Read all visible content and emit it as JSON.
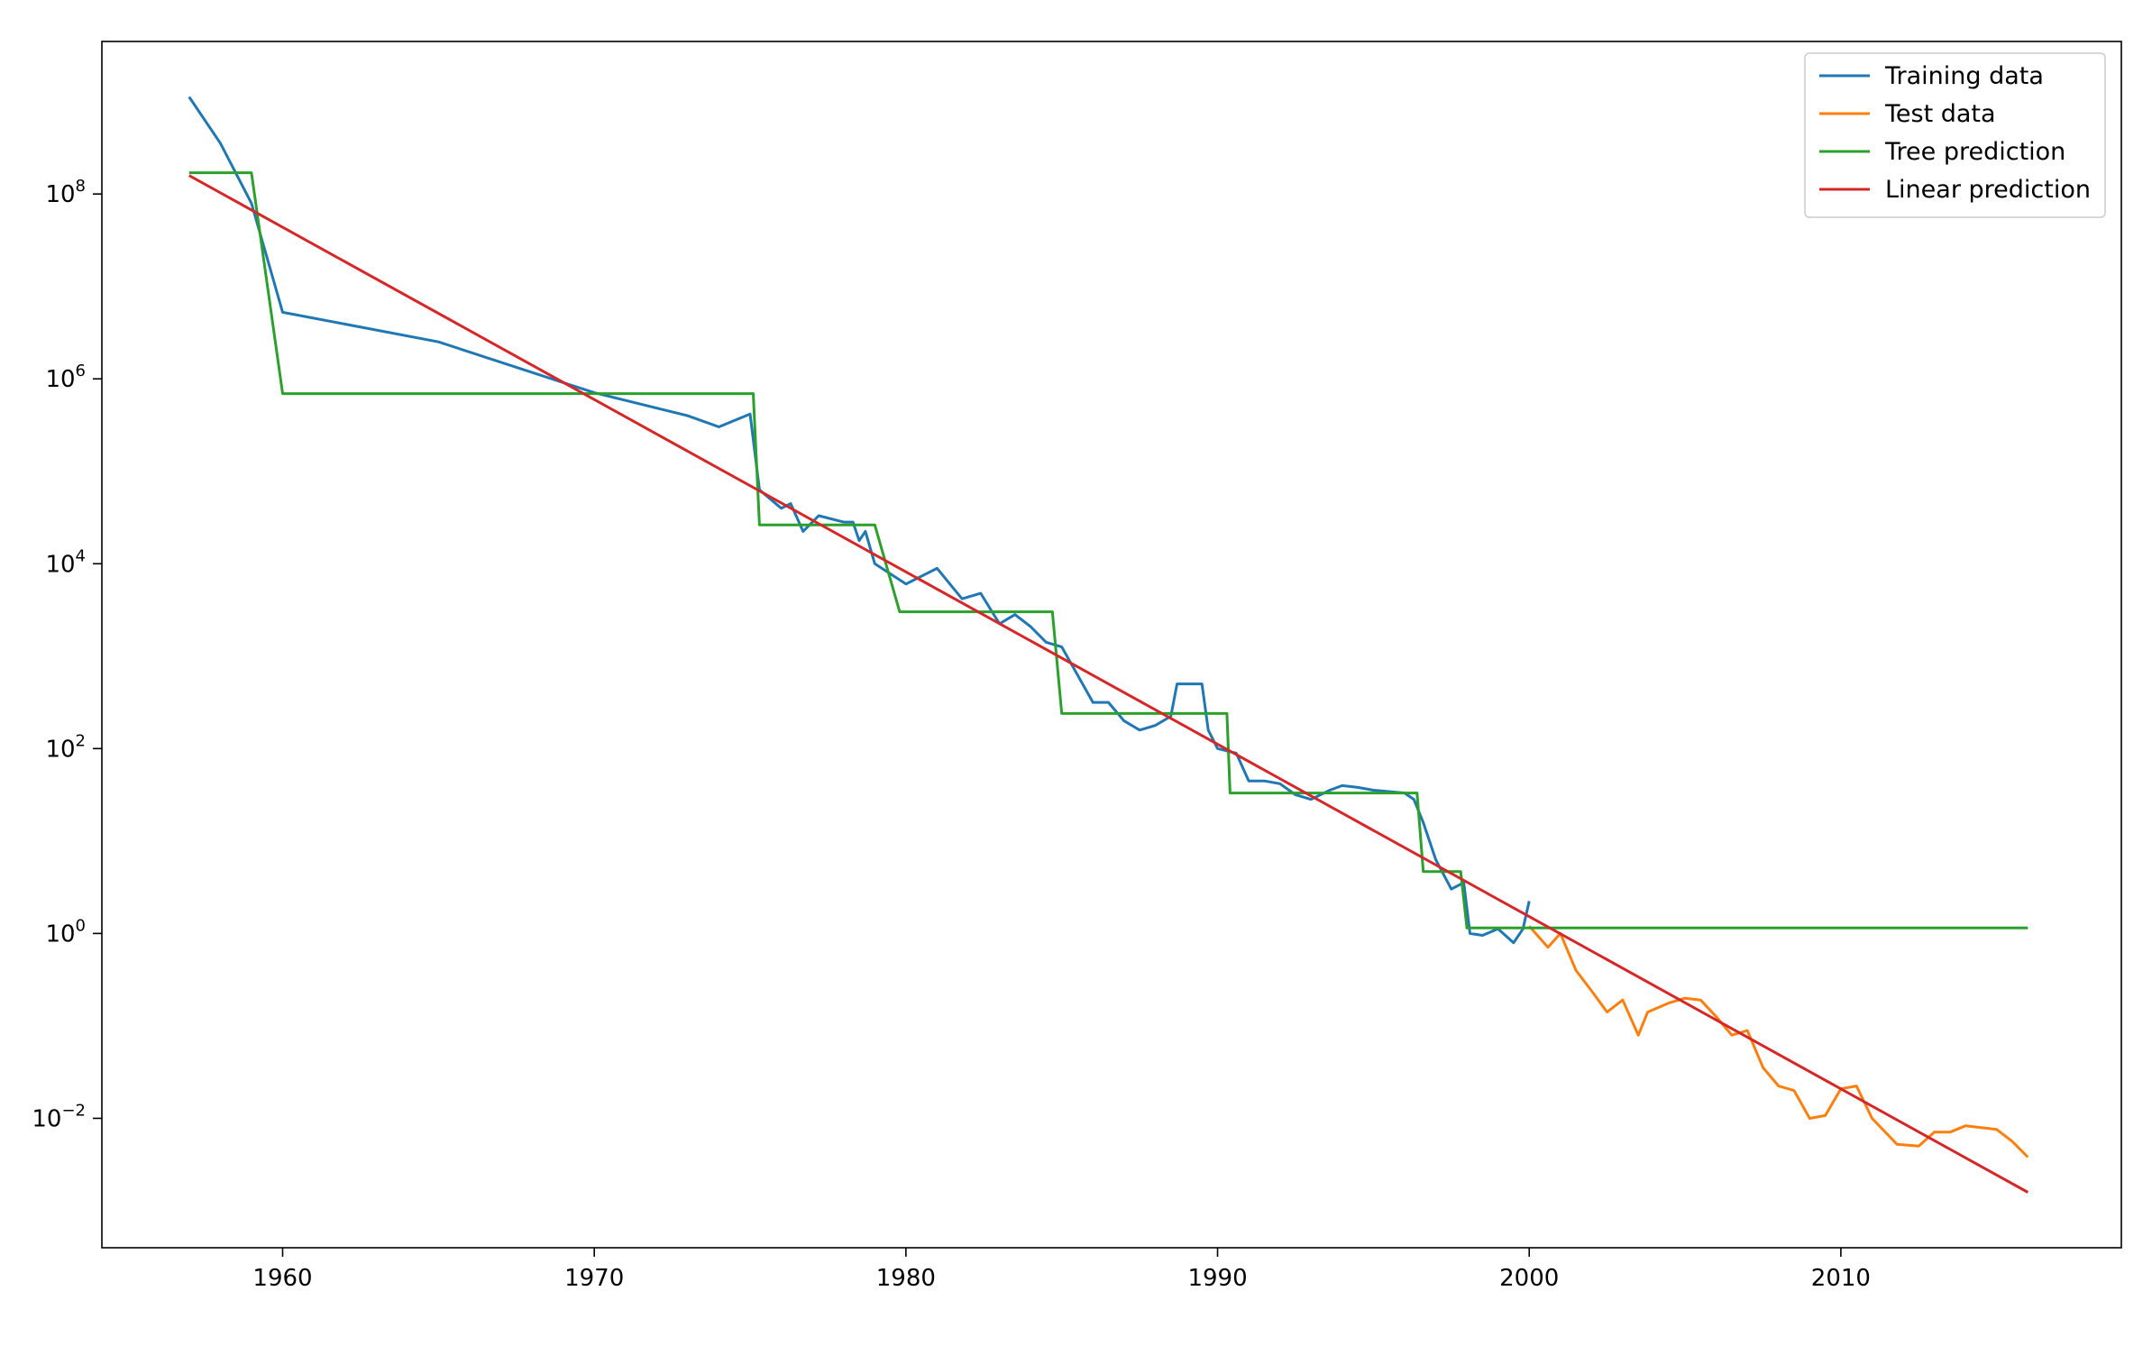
{
  "chart_data": {
    "type": "line",
    "title": "",
    "xlabel": "",
    "ylabel": "",
    "xlim": [
      1954.2,
      2019.0
    ],
    "y_scale": "log",
    "ylim_log10": [
      -3.4,
      9.65
    ],
    "grid": false,
    "legend_position": "top-right",
    "x_ticks": [
      {
        "value": 1960,
        "label": "1960"
      },
      {
        "value": 1970,
        "label": "1970"
      },
      {
        "value": 1980,
        "label": "1980"
      },
      {
        "value": 1990,
        "label": "1990"
      },
      {
        "value": 2000,
        "label": "2000"
      },
      {
        "value": 2010,
        "label": "2010"
      }
    ],
    "y_ticks": [
      {
        "exp": 8,
        "base": "10",
        "sup": "8"
      },
      {
        "exp": 6,
        "base": "10",
        "sup": "6"
      },
      {
        "exp": 4,
        "base": "10",
        "sup": "4"
      },
      {
        "exp": 2,
        "base": "10",
        "sup": "2"
      },
      {
        "exp": 0,
        "base": "10",
        "sup": "0"
      },
      {
        "exp": -2,
        "base": "10",
        "sup": "−2"
      }
    ],
    "series": [
      {
        "name": "Training data",
        "color": "#1f77b4",
        "points_log10": [
          [
            1957.0,
            9.05
          ],
          [
            1958.0,
            8.55
          ],
          [
            1959.0,
            7.9
          ],
          [
            1960.0,
            6.72
          ],
          [
            1965.0,
            6.4
          ],
          [
            1970.0,
            5.85
          ],
          [
            1973.0,
            5.6
          ],
          [
            1974.0,
            5.48
          ],
          [
            1975.0,
            5.62
          ],
          [
            1975.3,
            4.8
          ],
          [
            1976.0,
            4.6
          ],
          [
            1976.3,
            4.65
          ],
          [
            1976.7,
            4.35
          ],
          [
            1977.2,
            4.52
          ],
          [
            1978.0,
            4.45
          ],
          [
            1978.3,
            4.45
          ],
          [
            1978.5,
            4.25
          ],
          [
            1978.7,
            4.35
          ],
          [
            1979.0,
            4.0
          ],
          [
            1980.0,
            3.78
          ],
          [
            1981.0,
            3.95
          ],
          [
            1981.8,
            3.62
          ],
          [
            1982.4,
            3.68
          ],
          [
            1983.0,
            3.35
          ],
          [
            1983.5,
            3.45
          ],
          [
            1984.0,
            3.32
          ],
          [
            1984.5,
            3.15
          ],
          [
            1985.0,
            3.1
          ],
          [
            1985.5,
            2.8
          ],
          [
            1986.0,
            2.5
          ],
          [
            1986.5,
            2.5
          ],
          [
            1987.0,
            2.3
          ],
          [
            1987.5,
            2.2
          ],
          [
            1988.0,
            2.25
          ],
          [
            1988.5,
            2.35
          ],
          [
            1988.7,
            2.7
          ],
          [
            1989.5,
            2.7
          ],
          [
            1989.7,
            2.2
          ],
          [
            1990.0,
            2.0
          ],
          [
            1990.6,
            1.95
          ],
          [
            1991.0,
            1.65
          ],
          [
            1991.5,
            1.65
          ],
          [
            1992.0,
            1.62
          ],
          [
            1992.5,
            1.5
          ],
          [
            1993.0,
            1.45
          ],
          [
            1993.6,
            1.55
          ],
          [
            1994.0,
            1.6
          ],
          [
            1994.5,
            1.58
          ],
          [
            1995.0,
            1.55
          ],
          [
            1996.0,
            1.52
          ],
          [
            1996.3,
            1.45
          ],
          [
            1996.6,
            1.2
          ],
          [
            1997.0,
            0.8
          ],
          [
            1997.5,
            0.48
          ],
          [
            1997.9,
            0.55
          ],
          [
            1998.1,
            0.0
          ],
          [
            1998.5,
            -0.02
          ],
          [
            1999.0,
            0.05
          ],
          [
            1999.5,
            -0.1
          ],
          [
            1999.8,
            0.05
          ],
          [
            2000.0,
            0.35
          ]
        ]
      },
      {
        "name": "Test data",
        "color": "#ff7f0e",
        "points_log10": [
          [
            2000.0,
            0.08
          ],
          [
            2000.6,
            -0.15
          ],
          [
            2001.0,
            0.0
          ],
          [
            2001.5,
            -0.4
          ],
          [
            2002.0,
            -0.62
          ],
          [
            2002.5,
            -0.85
          ],
          [
            2003.0,
            -0.72
          ],
          [
            2003.5,
            -1.1
          ],
          [
            2003.8,
            -0.85
          ],
          [
            2004.5,
            -0.75
          ],
          [
            2005.0,
            -0.7
          ],
          [
            2005.5,
            -0.72
          ],
          [
            2006.0,
            -0.9
          ],
          [
            2006.5,
            -1.1
          ],
          [
            2007.0,
            -1.05
          ],
          [
            2007.5,
            -1.45
          ],
          [
            2008.0,
            -1.65
          ],
          [
            2008.5,
            -1.7
          ],
          [
            2009.0,
            -2.0
          ],
          [
            2009.5,
            -1.97
          ],
          [
            2010.0,
            -1.68
          ],
          [
            2010.5,
            -1.65
          ],
          [
            2011.0,
            -2.0
          ],
          [
            2011.8,
            -2.28
          ],
          [
            2012.5,
            -2.3
          ],
          [
            2013.0,
            -2.15
          ],
          [
            2013.5,
            -2.15
          ],
          [
            2014.0,
            -2.08
          ],
          [
            2014.5,
            -2.1
          ],
          [
            2015.0,
            -2.12
          ],
          [
            2015.5,
            -2.25
          ],
          [
            2016.0,
            -2.42
          ]
        ]
      },
      {
        "name": "Tree prediction",
        "color": "#2ca02c",
        "points_log10": [
          [
            1957.0,
            8.23
          ],
          [
            1959.0,
            8.23
          ],
          [
            1960.0,
            5.84
          ],
          [
            1975.1,
            5.84
          ],
          [
            1975.3,
            4.42
          ],
          [
            1979.0,
            4.42
          ],
          [
            1979.8,
            3.48
          ],
          [
            1984.7,
            3.48
          ],
          [
            1985.0,
            2.38
          ],
          [
            1990.3,
            2.38
          ],
          [
            1990.4,
            1.52
          ],
          [
            1996.4,
            1.52
          ],
          [
            1996.6,
            0.67
          ],
          [
            1997.8,
            0.67
          ],
          [
            1998.0,
            0.06
          ],
          [
            2016.0,
            0.06
          ]
        ]
      },
      {
        "name": "Linear prediction",
        "color": "#d62728",
        "points_log10": [
          [
            1957.0,
            8.2
          ],
          [
            2016.0,
            -2.8
          ]
        ]
      }
    ]
  }
}
